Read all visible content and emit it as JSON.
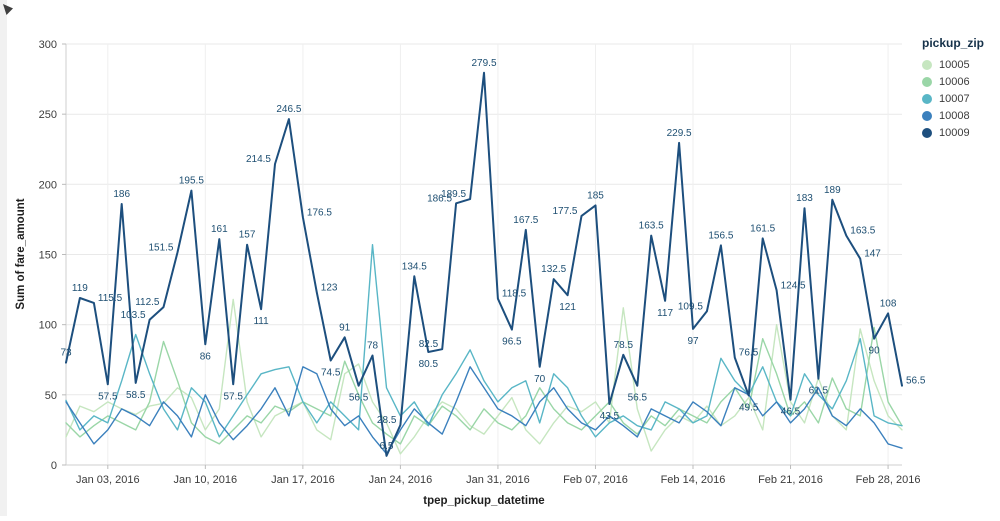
{
  "page": {
    "background": "#ffffff"
  },
  "legend": {
    "title": "pickup_zip",
    "items": [
      {
        "label": "10005",
        "color": "#c6e6c0"
      },
      {
        "label": "10006",
        "color": "#9ad6a7"
      },
      {
        "label": "10007",
        "color": "#59b6c6"
      },
      {
        "label": "10008",
        "color": "#3b80bd"
      },
      {
        "label": "10009",
        "color": "#1d4f7e"
      }
    ]
  },
  "chart_data": {
    "type": "line",
    "title": "",
    "xlabel": "tpep_pickup_datetime",
    "ylabel": "Sum of fare_amount",
    "ylim": [
      0,
      300
    ],
    "y_ticks": [
      0,
      50,
      100,
      150,
      200,
      250,
      300
    ],
    "x_count": 61,
    "x_ticks": [
      {
        "label": "Jan 03, 2016",
        "index": 3
      },
      {
        "label": "Jan 10, 2016",
        "index": 10
      },
      {
        "label": "Jan 17, 2016",
        "index": 17
      },
      {
        "label": "Jan 24, 2016",
        "index": 24
      },
      {
        "label": "Jan 31, 2016",
        "index": 31
      },
      {
        "label": "Feb 07, 2016",
        "index": 38
      },
      {
        "label": "Feb 14, 2016",
        "index": 45
      },
      {
        "label": "Feb 21, 2016",
        "index": 52
      },
      {
        "label": "Feb 28, 2016",
        "index": 59
      }
    ],
    "grid": true,
    "legend_position": "top-right",
    "label_color": "#1e4f72",
    "series": [
      {
        "name": "10005",
        "color": "#c6e6c0",
        "labeled": false,
        "values": [
          20,
          42,
          38,
          45,
          40,
          36,
          42,
          44,
          55,
          48,
          25,
          40,
          118,
          45,
          20,
          35,
          40,
          45,
          25,
          18,
          65,
          72,
          45,
          30,
          8,
          20,
          35,
          45,
          40,
          28,
          22,
          35,
          48,
          25,
          15,
          30,
          42,
          38,
          45,
          30,
          112,
          40,
          10,
          25,
          35,
          30,
          42,
          28,
          35,
          48,
          25,
          100,
          45,
          30,
          62,
          35,
          25,
          97,
          60,
          35,
          25
        ]
      },
      {
        "name": "10006",
        "color": "#9ad6a7",
        "labeled": false,
        "values": [
          30,
          20,
          28,
          35,
          30,
          25,
          45,
          88,
          60,
          30,
          20,
          15,
          25,
          35,
          30,
          42,
          38,
          45,
          40,
          35,
          74,
          50,
          30,
          22,
          15,
          35,
          28,
          42,
          35,
          25,
          40,
          30,
          25,
          35,
          55,
          40,
          30,
          25,
          35,
          45,
          30,
          22,
          35,
          28,
          40,
          35,
          30,
          45,
          55,
          40,
          90,
          65,
          35,
          45,
          30,
          62,
          40,
          35,
          98,
          45,
          28
        ]
      },
      {
        "name": "10007",
        "color": "#59b6c6",
        "labeled": false,
        "values": [
          46,
          25,
          35,
          30,
          60,
          93,
          65,
          40,
          25,
          55,
          45,
          20,
          35,
          50,
          65,
          68,
          70,
          45,
          30,
          45,
          35,
          25,
          157,
          55,
          35,
          45,
          28,
          50,
          65,
          82,
          60,
          45,
          55,
          60,
          30,
          65,
          55,
          35,
          20,
          30,
          35,
          28,
          25,
          45,
          40,
          30,
          35,
          76,
          60,
          50,
          70,
          45,
          35,
          65,
          50,
          40,
          60,
          90,
          35,
          30,
          28
        ]
      },
      {
        "name": "10008",
        "color": "#3b80bd",
        "labeled": false,
        "values": [
          45,
          30,
          15,
          25,
          40,
          35,
          28,
          45,
          35,
          20,
          50,
          30,
          18,
          28,
          40,
          55,
          35,
          70,
          65,
          40,
          28,
          35,
          20,
          8,
          25,
          40,
          30,
          22,
          45,
          70,
          55,
          40,
          35,
          28,
          45,
          55,
          40,
          30,
          25,
          35,
          28,
          20,
          40,
          35,
          30,
          45,
          38,
          28,
          55,
          50,
          35,
          45,
          30,
          40,
          55,
          35,
          28,
          40,
          30,
          15,
          12
        ]
      },
      {
        "name": "10009",
        "color": "#1d4f7e",
        "labeled": true,
        "values": [
          73,
          119,
          115.5,
          57.5,
          186,
          58.5,
          103.5,
          112.5,
          151.5,
          195.5,
          86,
          161,
          57.5,
          157,
          111,
          214.5,
          246.5,
          176.5,
          123,
          74.5,
          91,
          56.5,
          78,
          6.5,
          28.5,
          134.5,
          80.5,
          82.5,
          186.5,
          189.5,
          279.5,
          118.5,
          96.5,
          167.5,
          70,
          132.5,
          121,
          177.5,
          185,
          43.5,
          78.5,
          56.5,
          163.5,
          117,
          229.5,
          97,
          109.5,
          156.5,
          76.5,
          49.5,
          161.5,
          124.5,
          46.5,
          183,
          61.5,
          189,
          163.5,
          147,
          90,
          108,
          56.5
        ]
      }
    ]
  }
}
